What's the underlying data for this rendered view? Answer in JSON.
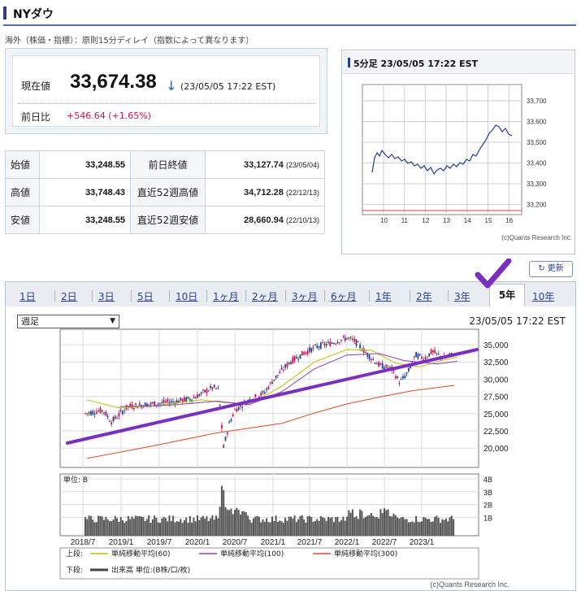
{
  "header": {
    "title": "NYダウ",
    "note": "海外（株価・指標）：原則15分ディレイ（指数によって異なります）"
  },
  "quote": {
    "label": "現在値",
    "price": "33,674.38",
    "arrow": "↓",
    "time": "(23/05/05 17:22 EST)",
    "prev_label": "前日比",
    "prev_change": "+546.64 (+1.65%)"
  },
  "stats": {
    "open_label": "始値",
    "open": "33,248.55",
    "high_label": "高値",
    "high": "33,748.43",
    "low_label": "安値",
    "low": "33,248.55",
    "prev_close_label": "前日終値",
    "prev_close": "33,127.74",
    "prev_close_date": "(23/05/04)",
    "high52_label": "直近52週高値",
    "high52": "34,712.28",
    "high52_date": "(22/12/13)",
    "low52_label": "直近52週安値",
    "low52": "28,660.94",
    "low52_date": "(22/10/13)"
  },
  "mini_chart": {
    "title": "5分足 23/05/05 17:22 EST",
    "y_ticks": [
      "33,700",
      "33,600",
      "33,500",
      "33,400",
      "33,300",
      "33,200"
    ],
    "x_ticks": [
      "10",
      "11",
      "12",
      "13",
      "14",
      "15",
      "16"
    ],
    "credit": "(c)Quants Research Inc."
  },
  "refresh": {
    "label": "更新",
    "icon": "refresh-icon"
  },
  "tabs": [
    "1日",
    "2日",
    "3日",
    "5日",
    "10日",
    "1ヶ月",
    "2ヶ月",
    "3ヶ月",
    "6ヶ月",
    "1年",
    "2年",
    "3年",
    "5年",
    "10年"
  ],
  "active_tab": "5年",
  "main_chart": {
    "period_value": "週足",
    "timestamp": "23/05/05 17:22 EST",
    "y_ticks": [
      "35,000",
      "32,500",
      "30,000",
      "27,500",
      "25,000",
      "22,500",
      "20,000"
    ],
    "vol_ticks": [
      "4B",
      "3B",
      "2B",
      "1B"
    ],
    "vol_unit": "単位: B",
    "x_ticks": [
      "2018/7",
      "2019/1",
      "2019/7",
      "2020/1",
      "2020/7",
      "2021/1",
      "2021/7",
      "2022/1",
      "2022/7",
      "2023/1"
    ],
    "legend_upper_label": "上段:",
    "legend_lower_label": "下段:",
    "ma60": "単純移動平均(60)",
    "ma100": "単純移動平均(100)",
    "ma300": "単純移動平均(300)",
    "volume_legend": "出来高 単位:(B株/口/枚)",
    "credit": "(c)Quants Research Inc.",
    "colors": {
      "up": "#d0104c",
      "down": "#1f3f8f",
      "ma60": "#b9c400",
      "ma100": "#8a3fb8",
      "ma300": "#e24a2a",
      "trend": "#7a2fc0",
      "check": "#7a2fc0"
    }
  }
}
